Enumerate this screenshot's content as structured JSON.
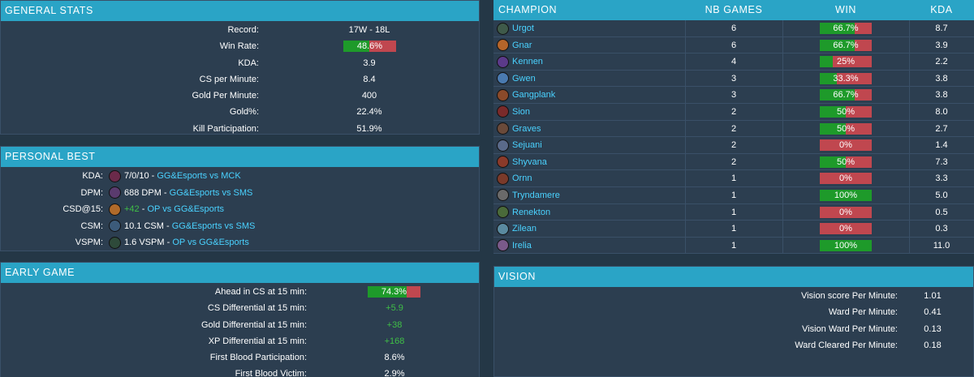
{
  "general_stats": {
    "title": "GENERAL STATS",
    "record_label": "Record:",
    "record_value": "17W - 18L",
    "win_rate_label": "Win Rate:",
    "win_rate_value": "48.6%",
    "win_rate_fraction": 0.486,
    "kda_label": "KDA:",
    "kda_value": "3.9",
    "cs_label": "CS per Minute:",
    "cs_value": "8.4",
    "gold_label": "Gold Per Minute:",
    "gold_value": "400",
    "goldpct_label": "Gold%:",
    "goldpct_value": "22.4%",
    "kp_label": "Kill Participation:",
    "kp_value": "51.9%"
  },
  "personal_best": {
    "title": "PERSONAL BEST",
    "rows": [
      {
        "label": "KDA:",
        "value": "7/0/10",
        "value_color": "#ffffff",
        "sep": " - ",
        "match": "GG&Esports vs MCK",
        "icon_color": "#6b2a4a"
      },
      {
        "label": "DPM:",
        "value": "688 DPM",
        "value_color": "#ffffff",
        "sep": " - ",
        "match": "GG&Esports vs SMS",
        "icon_color": "#5a3b6e"
      },
      {
        "label": "CSD@15:",
        "value": "+42",
        "value_color": "#3fbf46",
        "sep": " - ",
        "match": "OP vs GG&Esports",
        "icon_color": "#b06a2a"
      },
      {
        "label": "CSM:",
        "value": "10.1 CSM",
        "value_color": "#ffffff",
        "sep": " - ",
        "match": "GG&Esports vs SMS",
        "icon_color": "#3c5b7a"
      },
      {
        "label": "VSPM:",
        "value": "1.6 VSPM",
        "value_color": "#ffffff",
        "sep": " - ",
        "match": "OP vs GG&Esports",
        "icon_color": "#2e4a3a"
      }
    ]
  },
  "early_game": {
    "title": "EARLY GAME",
    "ahead_label": "Ahead in CS at 15 min:",
    "ahead_value": "74.3%",
    "ahead_fraction": 0.743,
    "csd_label": "CS Differential at 15 min:",
    "csd_value": "+5.9",
    "gd_label": "Gold Differential at 15 min:",
    "gd_value": "+38",
    "xpd_label": "XP Differential at 15 min:",
    "xpd_value": "+168",
    "fbp_label": "First Blood Participation:",
    "fbp_value": "8.6%",
    "fbv_label": "First Blood Victim:",
    "fbv_value": "2.9%"
  },
  "champions": {
    "headers": {
      "champion": "CHAMPION",
      "games": "NB GAMES",
      "winrate": "WIN RATE",
      "kda": "KDA"
    },
    "rows": [
      {
        "name": "Urgot",
        "games": "6",
        "winrate": "66.7%",
        "wr": 0.667,
        "kda": "8.7",
        "icon_color": "#3f5a4a"
      },
      {
        "name": "Gnar",
        "games": "6",
        "winrate": "66.7%",
        "wr": 0.667,
        "kda": "3.9",
        "icon_color": "#b5652a"
      },
      {
        "name": "Kennen",
        "games": "4",
        "winrate": "25%",
        "wr": 0.25,
        "kda": "2.2",
        "icon_color": "#5b3a8a"
      },
      {
        "name": "Gwen",
        "games": "3",
        "winrate": "33.3%",
        "wr": 0.333,
        "kda": "3.8",
        "icon_color": "#4a7ab0"
      },
      {
        "name": "Gangplank",
        "games": "3",
        "winrate": "66.7%",
        "wr": 0.667,
        "kda": "3.8",
        "icon_color": "#8a4a2a"
      },
      {
        "name": "Sion",
        "games": "2",
        "winrate": "50%",
        "wr": 0.5,
        "kda": "8.0",
        "icon_color": "#7a2a2a"
      },
      {
        "name": "Graves",
        "games": "2",
        "winrate": "50%",
        "wr": 0.5,
        "kda": "2.7",
        "icon_color": "#6a4a3a"
      },
      {
        "name": "Sejuani",
        "games": "2",
        "winrate": "0%",
        "wr": 0.0,
        "kda": "1.4",
        "icon_color": "#5a6a8a"
      },
      {
        "name": "Shyvana",
        "games": "2",
        "winrate": "50%",
        "wr": 0.5,
        "kda": "7.3",
        "icon_color": "#8a3a2a"
      },
      {
        "name": "Ornn",
        "games": "1",
        "winrate": "0%",
        "wr": 0.0,
        "kda": "3.3",
        "icon_color": "#7a3a2a"
      },
      {
        "name": "Tryndamere",
        "games": "1",
        "winrate": "100%",
        "wr": 1.0,
        "kda": "5.0",
        "icon_color": "#6a6a6a"
      },
      {
        "name": "Renekton",
        "games": "1",
        "winrate": "0%",
        "wr": 0.0,
        "kda": "0.5",
        "icon_color": "#4a6a3a"
      },
      {
        "name": "Zilean",
        "games": "1",
        "winrate": "0%",
        "wr": 0.0,
        "kda": "0.3",
        "icon_color": "#5a8aa0"
      },
      {
        "name": "Irelia",
        "games": "1",
        "winrate": "100%",
        "wr": 1.0,
        "kda": "11.0",
        "icon_color": "#7a5a8a"
      }
    ]
  },
  "vision": {
    "title": "VISION",
    "vspm_label": "Vision score Per Minute:",
    "vspm_value": "1.01",
    "wpm_label": "Ward Per Minute:",
    "wpm_value": "0.41",
    "vwpm_label": "Vision Ward Per Minute:",
    "vwpm_value": "0.13",
    "wcpm_label": "Ward Cleared Per Minute:",
    "wcpm_value": "0.18"
  },
  "colors": {
    "header": "#2aa4c6",
    "panel": "#2c3e50",
    "bg": "#243746",
    "win": "#1e9a2a",
    "loss": "#c0474f",
    "link": "#4ad2ff",
    "positive": "#3fbf46"
  }
}
